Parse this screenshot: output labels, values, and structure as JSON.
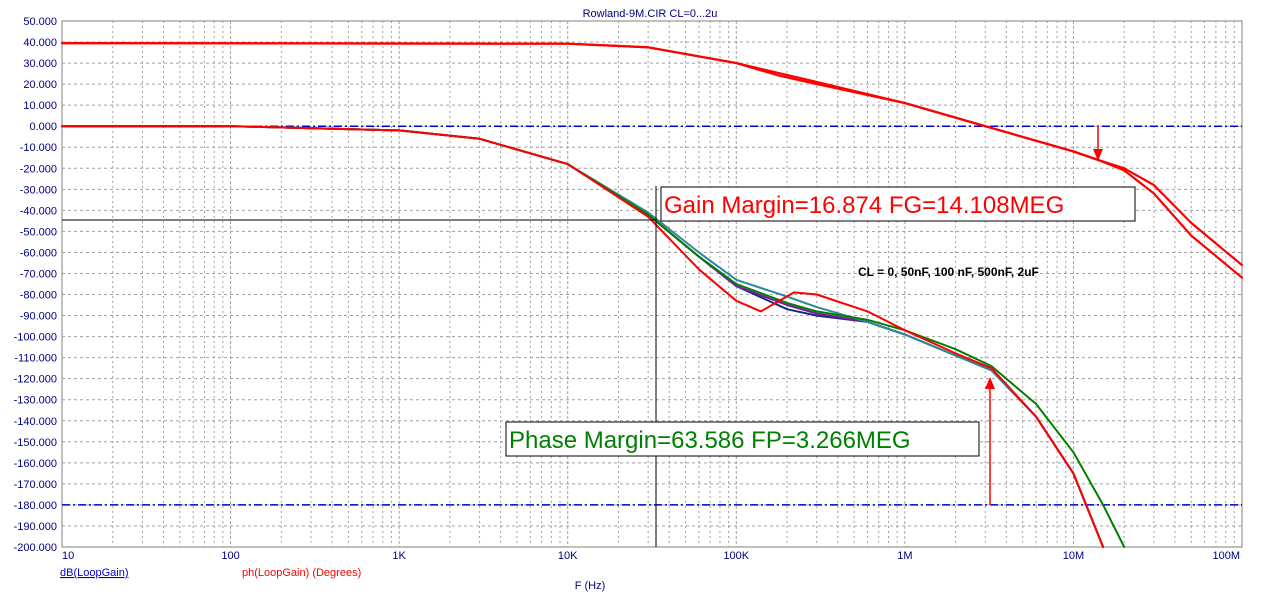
{
  "chart_data": {
    "type": "line",
    "title": "Rowland-9M.CIR CL=0...2u",
    "xlabel": "F (Hz)",
    "x_scale": "log",
    "xlim": [
      10,
      100000000
    ],
    "ylim": [
      -200,
      50
    ],
    "grid": true,
    "x_ticks": [
      "10",
      "100",
      "1K",
      "10K",
      "100K",
      "1M",
      "10M",
      "100M"
    ],
    "y_ticks": [
      "50.000",
      "40.000",
      "30.000",
      "20.000",
      "10.000",
      "0.000",
      "-10.000",
      "-20.000",
      "-30.000",
      "-40.000",
      "-50.000",
      "-60.000",
      "-70.000",
      "-80.000",
      "-90.000",
      "-100.000",
      "-110.000",
      "-120.000",
      "-130.000",
      "-140.000",
      "-150.000",
      "-160.000",
      "-170.000",
      "-180.000",
      "-190.000",
      "-200.000"
    ],
    "legend": [
      {
        "label": "dB(LoopGain)",
        "color": "#0000cc",
        "underline": true
      },
      {
        "label": "ph(LoopGain) (Degrees)",
        "color": "#ff0000",
        "underline": false
      }
    ],
    "reference_lines": [
      0,
      -180
    ],
    "series": [
      {
        "group": "gain",
        "color": "#ff0000",
        "points": [
          [
            10,
            39.5
          ],
          [
            10000,
            39.2
          ],
          [
            30000,
            37.5
          ],
          [
            100000,
            30
          ],
          [
            300000,
            21
          ],
          [
            1000000,
            11
          ],
          [
            3000000,
            0
          ],
          [
            10000000,
            -12
          ],
          [
            14000000,
            -16
          ],
          [
            20000000,
            -20
          ],
          [
            30000000,
            -28
          ],
          [
            50000000,
            -46
          ],
          [
            100000000,
            -66
          ]
        ]
      },
      {
        "group": "gain",
        "color": "#ff0000",
        "points": [
          [
            10,
            39.5
          ],
          [
            10000,
            39.2
          ],
          [
            30000,
            37.5
          ],
          [
            100000,
            30
          ],
          [
            180000,
            24
          ],
          [
            300000,
            20
          ],
          [
            1000000,
            11
          ],
          [
            3000000,
            0
          ],
          [
            10000000,
            -12
          ],
          [
            14000000,
            -16
          ],
          [
            20000000,
            -21
          ],
          [
            30000000,
            -32
          ],
          [
            50000000,
            -52
          ],
          [
            100000000,
            -72
          ]
        ]
      },
      {
        "group": "phase",
        "color": "#1a2a80",
        "points": [
          [
            10,
            0
          ],
          [
            100,
            0
          ],
          [
            1000,
            -2
          ],
          [
            3000,
            -6
          ],
          [
            10000,
            -18
          ],
          [
            30000,
            -42
          ],
          [
            60000,
            -62
          ],
          [
            100000,
            -76
          ],
          [
            200000,
            -87
          ],
          [
            300000,
            -90
          ],
          [
            600000,
            -93
          ],
          [
            1000000,
            -99
          ],
          [
            2000000,
            -109
          ],
          [
            3266000,
            -116
          ],
          [
            6000000,
            -138
          ],
          [
            10000000,
            -165
          ],
          [
            15000000,
            -200
          ]
        ]
      },
      {
        "group": "phase",
        "color": "#7a1aa0",
        "points": [
          [
            10,
            0
          ],
          [
            100,
            0
          ],
          [
            1000,
            -2
          ],
          [
            3000,
            -6
          ],
          [
            10000,
            -18
          ],
          [
            30000,
            -42
          ],
          [
            60000,
            -62
          ],
          [
            100000,
            -76
          ],
          [
            200000,
            -85
          ],
          [
            300000,
            -89
          ],
          [
            600000,
            -93
          ],
          [
            1000000,
            -99
          ],
          [
            2000000,
            -109
          ],
          [
            3266000,
            -116
          ],
          [
            6000000,
            -138
          ],
          [
            10000000,
            -165
          ],
          [
            15000000,
            -200
          ]
        ]
      },
      {
        "group": "phase",
        "color": "#2a8a9a",
        "points": [
          [
            10,
            0
          ],
          [
            100,
            0
          ],
          [
            1000,
            -2
          ],
          [
            3000,
            -6
          ],
          [
            10000,
            -18
          ],
          [
            30000,
            -41
          ],
          [
            60000,
            -60
          ],
          [
            100000,
            -73
          ],
          [
            200000,
            -81
          ],
          [
            300000,
            -86
          ],
          [
            600000,
            -93
          ],
          [
            1000000,
            -99
          ],
          [
            2000000,
            -109
          ],
          [
            3266000,
            -116
          ],
          [
            6000000,
            -138
          ],
          [
            10000000,
            -165
          ],
          [
            15000000,
            -200
          ]
        ]
      },
      {
        "group": "phase",
        "color": "#008000",
        "points": [
          [
            10,
            0
          ],
          [
            100,
            0
          ],
          [
            1000,
            -2
          ],
          [
            3000,
            -6
          ],
          [
            10000,
            -18
          ],
          [
            30000,
            -42
          ],
          [
            60000,
            -62
          ],
          [
            100000,
            -75
          ],
          [
            200000,
            -84
          ],
          [
            300000,
            -88
          ],
          [
            600000,
            -92
          ],
          [
            1000000,
            -97
          ],
          [
            2000000,
            -106
          ],
          [
            3266000,
            -114
          ],
          [
            6000000,
            -132
          ],
          [
            10000000,
            -155
          ],
          [
            15000000,
            -180
          ],
          [
            20000000,
            -200
          ]
        ]
      },
      {
        "group": "phase",
        "color": "#ff0000",
        "points": [
          [
            10,
            0
          ],
          [
            100,
            0
          ],
          [
            1000,
            -2
          ],
          [
            3000,
            -6
          ],
          [
            10000,
            -18
          ],
          [
            30000,
            -43
          ],
          [
            60000,
            -68
          ],
          [
            100000,
            -83
          ],
          [
            140000,
            -88
          ],
          [
            220000,
            -79
          ],
          [
            300000,
            -80
          ],
          [
            600000,
            -88
          ],
          [
            1000000,
            -97
          ],
          [
            2000000,
            -108
          ],
          [
            3266000,
            -115
          ],
          [
            6000000,
            -138
          ],
          [
            10000000,
            -165
          ],
          [
            15000000,
            -200
          ]
        ]
      }
    ],
    "annotations": {
      "gain_margin": {
        "text": "Gain Margin=16.874 FG=14.108MEG",
        "color": "#ff0000",
        "value": 16.874,
        "freq": 14108000
      },
      "phase_margin": {
        "text": "Phase Margin=63.586 FP=3.266MEG",
        "color": "#008000",
        "value": 63.586,
        "freq": 3266000
      },
      "cl_note": {
        "text": "CL = 0, 50nF, 100 nF, 500nF, 2uF",
        "color": "#000000"
      }
    }
  }
}
